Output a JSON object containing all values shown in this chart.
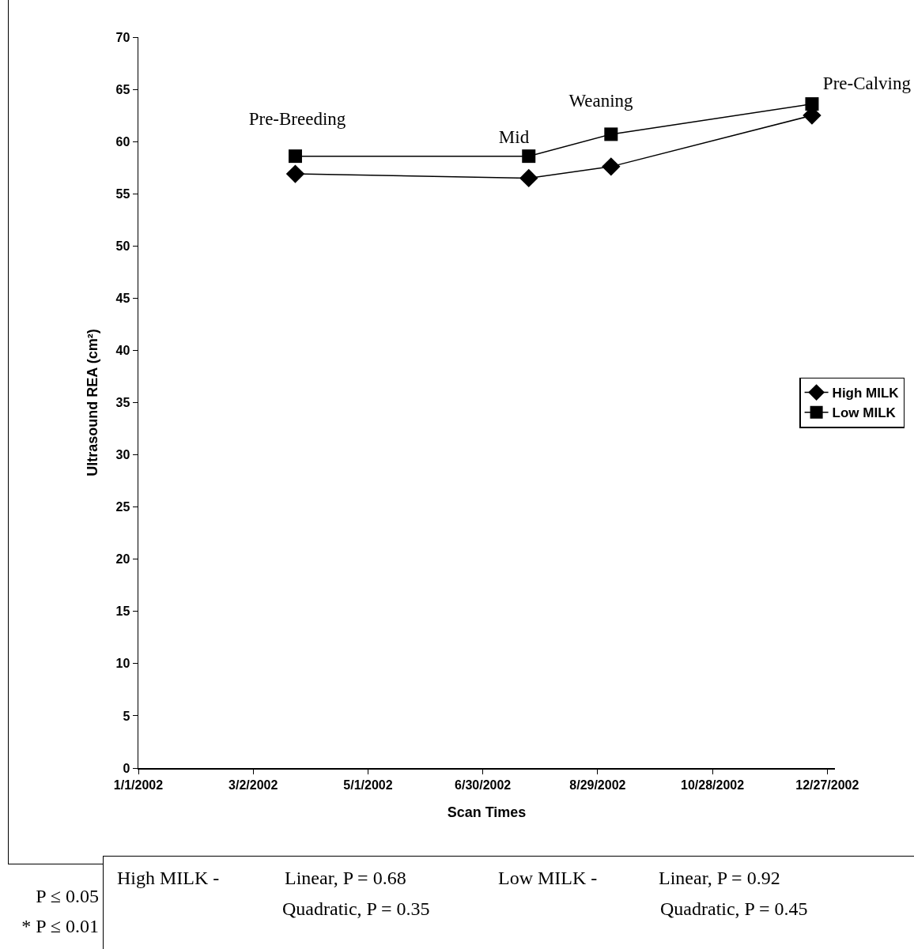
{
  "chart_data": {
    "type": "line",
    "xlabel": "Scan Times",
    "ylabel": "Ultrasound REA (cm²)",
    "xlim": [
      "2002-01-01",
      "2002-12-31"
    ],
    "xticks": [
      {
        "value": "2002-01-01",
        "label": "1/1/2002"
      },
      {
        "value": "2002-03-02",
        "label": "3/2/2002"
      },
      {
        "value": "2002-05-01",
        "label": "5/1/2002"
      },
      {
        "value": "2002-06-30",
        "label": "6/30/2002"
      },
      {
        "value": "2002-08-29",
        "label": "8/29/2002"
      },
      {
        "value": "2002-10-28",
        "label": "10/28/2002"
      },
      {
        "value": "2002-12-27",
        "label": "12/27/2002"
      }
    ],
    "ylim": [
      0,
      70
    ],
    "yticks": [
      0,
      5,
      10,
      15,
      20,
      25,
      30,
      35,
      40,
      45,
      50,
      55,
      60,
      65,
      70
    ],
    "x": [
      "2002-03-24",
      "2002-07-24",
      "2002-09-05",
      "2002-12-19"
    ],
    "series": [
      {
        "name": "High MILK",
        "color": "#000000",
        "marker": "diamond",
        "values": [
          56.9,
          56.5,
          57.6,
          62.5
        ]
      },
      {
        "name": "Low MILK",
        "color": "#000000",
        "marker": "square",
        "values": [
          58.6,
          58.6,
          60.7,
          63.6
        ]
      }
    ],
    "grid": false,
    "legend": "right",
    "line_style": "solid",
    "annotations": [
      "Pre-Breeding",
      "Mid",
      "Weaning",
      "Pre-Calving",
      "High MILK -",
      "Linear, P = 0.68",
      "Quadratic, P = 0.35",
      "Low MILK -",
      "Linear, P = 0.92",
      "Quadratic, P = 0.45",
      "P ≤ 0.05",
      "* P ≤ 0.01"
    ]
  }
}
